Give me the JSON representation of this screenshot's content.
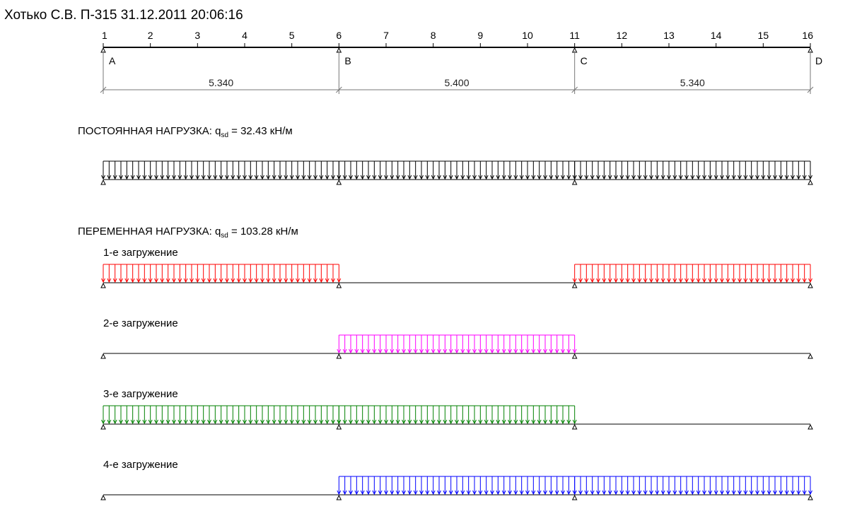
{
  "header": {
    "title": "Хотько С.В.  П-315  31.12.2011 20:06:16"
  },
  "beam": {
    "node_numbers": [
      "1",
      "2",
      "3",
      "4",
      "5",
      "6",
      "7",
      "8",
      "9",
      "10",
      "11",
      "12",
      "13",
      "14",
      "15",
      "16"
    ],
    "supports": [
      {
        "label": "A",
        "node": 1
      },
      {
        "label": "B",
        "node": 6
      },
      {
        "label": "C",
        "node": 11
      },
      {
        "label": "D",
        "node": 16
      }
    ],
    "spans": [
      "5.340",
      "5.400",
      "5.340"
    ]
  },
  "permanent_load": {
    "title_prefix": "ПОСТОЯННАЯ НАГРУЗКА: q",
    "subscript": "sd",
    "title_suffix": " = 32.43 кН/м",
    "color": "#000000",
    "spans_loaded": [
      1,
      2,
      3
    ]
  },
  "variable_load": {
    "title_prefix": "ПЕРЕМЕННАЯ НАГРУЗКА: q",
    "subscript": "sd",
    "title_suffix": " = 103.28 кН/м",
    "cases": [
      {
        "label": "1-е загружение",
        "color": "#ff0000",
        "spans_loaded": [
          1,
          3
        ]
      },
      {
        "label": "2-е загружение",
        "color": "#ff00ff",
        "spans_loaded": [
          2
        ]
      },
      {
        "label": "3-е загружение",
        "color": "#008000",
        "spans_loaded": [
          1,
          2
        ]
      },
      {
        "label": "4-е загружение",
        "color": "#0000ff",
        "spans_loaded": [
          2,
          3
        ]
      }
    ]
  }
}
